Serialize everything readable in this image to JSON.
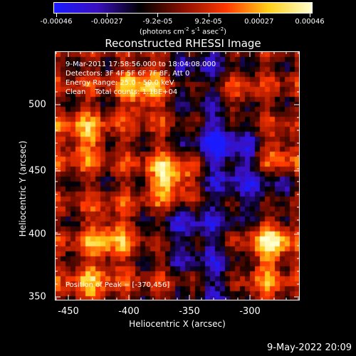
{
  "colorbar": {
    "ticks": [
      "-0.00046",
      "-0.00027",
      "-9.2e-05",
      "9.2e-05",
      "0.00027",
      "0.00046"
    ],
    "units": {
      "main": "(photons cm",
      "exp1": "-2",
      "s": " s",
      "exp2": "-1",
      "asec": " asec",
      "exp3": "-2",
      "close": ")"
    },
    "colors": [
      "#1b1bff",
      "#3b10c0",
      "#000000",
      "#8a1000",
      "#ff3800",
      "#ffd11a",
      "#ffffd0"
    ]
  },
  "title": "Reconstructed RHESSI Image",
  "info_lines": [
    "9-Mar-2011 17:58:56.000 to 18:04:08.000",
    "Detectors: 3F 4F 5F 6F 7F 8F, Att 0",
    "Energy Range: 25.0 - 50.0 keV",
    "Clean    Total counts: 1.18E+04"
  ],
  "peak_text": "Position of Peak = [-370,456]",
  "xaxis": {
    "label": "Heliocentric X (arcsec)",
    "ticks": [
      "-450",
      "-400",
      "-350",
      "-300"
    ]
  },
  "yaxis": {
    "label": "Heliocentric Y (arcsec)",
    "ticks": [
      "500",
      "450",
      "400",
      "350"
    ]
  },
  "timestamp": "9-May-2022 20:09",
  "chart_data": {
    "type": "heatmap",
    "title": "Reconstructed RHESSI Image",
    "xlabel": "Heliocentric X (arcsec)",
    "ylabel": "Heliocentric Y (arcsec)",
    "xlim": [
      -470,
      -265
    ],
    "ylim": [
      348,
      557
    ],
    "colorbar_range": [
      -0.00046,
      0.00046
    ],
    "peak": [
      -370,
      456
    ],
    "hotspots": [
      {
        "x": -372,
        "y": 450,
        "intensity": 1.0
      },
      {
        "x": -290,
        "y": 398,
        "intensity": 0.85
      },
      {
        "x": -395,
        "y": 527,
        "intensity": 0.75
      },
      {
        "x": -447,
        "y": 485,
        "intensity": 0.55
      },
      {
        "x": -425,
        "y": 400,
        "intensity": 0.6
      },
      {
        "x": -440,
        "y": 360,
        "intensity": 0.45
      },
      {
        "x": -285,
        "y": 470,
        "intensity": 0.55
      },
      {
        "x": -320,
        "y": 520,
        "intensity": 0.45
      },
      {
        "x": -300,
        "y": 360,
        "intensity": 0.45
      }
    ],
    "coldspots": [
      {
        "x": -330,
        "y": 480,
        "intensity": -0.8
      },
      {
        "x": -355,
        "y": 410,
        "intensity": -0.6
      },
      {
        "x": -330,
        "y": 360,
        "intensity": -0.5
      },
      {
        "x": -300,
        "y": 440,
        "intensity": -0.55
      },
      {
        "x": -345,
        "y": 540,
        "intensity": -0.55
      }
    ]
  }
}
